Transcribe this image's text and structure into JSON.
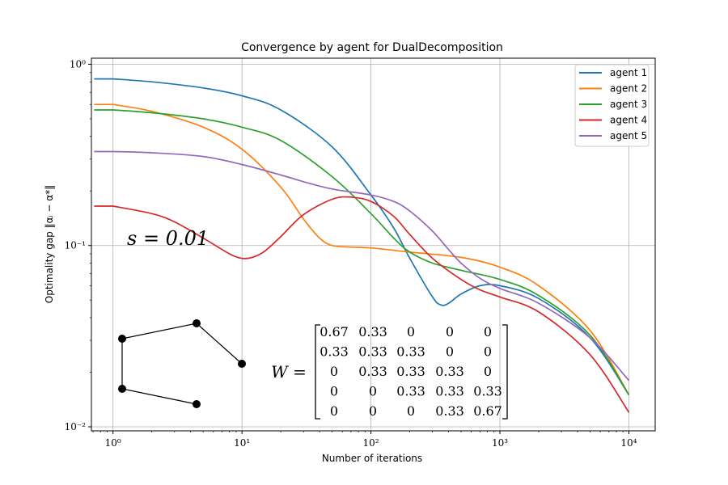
{
  "chart_data": {
    "type": "line",
    "title": "Convergence by agent for DualDecomposition",
    "xlabel": "Number of iterations",
    "ylabel": "Optimality gap ‖αᵢ − α*‖",
    "xscale": "log",
    "yscale": "log",
    "xlim": [
      0.68,
      16000
    ],
    "ylim": [
      0.0095,
      1.08
    ],
    "xticks": [
      1,
      10,
      100,
      1000,
      10000
    ],
    "xtick_labels": [
      "10⁰",
      "10¹",
      "10²",
      "10³",
      "10⁴"
    ],
    "yticks": [
      0.01,
      0.1,
      1
    ],
    "ytick_labels": [
      "10⁻²",
      "10⁻¹",
      "10⁰"
    ],
    "grid": true,
    "legend_position": "top-right",
    "series": [
      {
        "name": "agent 1",
        "color": "#1f77b4",
        "x": [
          1,
          2,
          5,
          10,
          20,
          50,
          100,
          150,
          200,
          300,
          350,
          400,
          500,
          700,
          1000,
          2000,
          5000,
          10000
        ],
        "y": [
          0.83,
          0.8,
          0.74,
          0.67,
          0.56,
          0.35,
          0.19,
          0.125,
          0.085,
          0.052,
          0.047,
          0.048,
          0.054,
          0.06,
          0.06,
          0.051,
          0.031,
          0.015
        ]
      },
      {
        "name": "agent 2",
        "color": "#ff7f0e",
        "x": [
          1,
          2,
          5,
          10,
          20,
          30,
          40,
          50,
          70,
          100,
          200,
          500,
          1000,
          2000,
          5000,
          10000
        ],
        "y": [
          0.6,
          0.55,
          0.45,
          0.34,
          0.21,
          0.14,
          0.11,
          0.1,
          0.098,
          0.097,
          0.092,
          0.086,
          0.076,
          0.06,
          0.034,
          0.015
        ]
      },
      {
        "name": "agent 3",
        "color": "#2ca02c",
        "x": [
          1,
          2,
          5,
          10,
          20,
          50,
          100,
          150,
          200,
          300,
          500,
          1000,
          2000,
          5000,
          10000
        ],
        "y": [
          0.56,
          0.54,
          0.5,
          0.45,
          0.38,
          0.24,
          0.15,
          0.11,
          0.092,
          0.08,
          0.073,
          0.065,
          0.053,
          0.032,
          0.015
        ]
      },
      {
        "name": "agent 4",
        "color": "#d62728",
        "x": [
          1,
          2,
          3,
          5,
          8,
          10,
          12,
          15,
          20,
          30,
          50,
          70,
          100,
          150,
          200,
          300,
          500,
          700,
          1000,
          2000,
          5000,
          10000
        ],
        "y": [
          0.165,
          0.15,
          0.135,
          0.11,
          0.09,
          0.085,
          0.086,
          0.093,
          0.112,
          0.148,
          0.18,
          0.185,
          0.175,
          0.145,
          0.115,
          0.085,
          0.065,
          0.057,
          0.052,
          0.043,
          0.025,
          0.012
        ]
      },
      {
        "name": "agent 5",
        "color": "#9467bd",
        "x": [
          1,
          2,
          5,
          10,
          20,
          30,
          50,
          100,
          150,
          200,
          300,
          400,
          500,
          700,
          1000,
          2000,
          5000,
          10000
        ],
        "y": [
          0.33,
          0.325,
          0.31,
          0.28,
          0.245,
          0.225,
          0.205,
          0.19,
          0.175,
          0.155,
          0.12,
          0.095,
          0.08,
          0.066,
          0.058,
          0.048,
          0.031,
          0.018
        ]
      }
    ],
    "annotations": [
      {
        "name": "step-size",
        "text": "s = 0.01"
      },
      {
        "name": "weight-matrix",
        "lhs": "W =",
        "rows": [
          [
            "0.67",
            "0.33",
            "0",
            "0",
            "0"
          ],
          [
            "0.33",
            "0.33",
            "0.33",
            "0",
            "0"
          ],
          [
            "0",
            "0.33",
            "0.33",
            "0.33",
            "0"
          ],
          [
            "0",
            "0",
            "0.33",
            "0.33",
            "0.33"
          ],
          [
            "0",
            "0",
            "0",
            "0.33",
            "0.67"
          ]
        ]
      },
      {
        "name": "graph-inset",
        "description": "path graph of 5 nodes"
      }
    ]
  }
}
